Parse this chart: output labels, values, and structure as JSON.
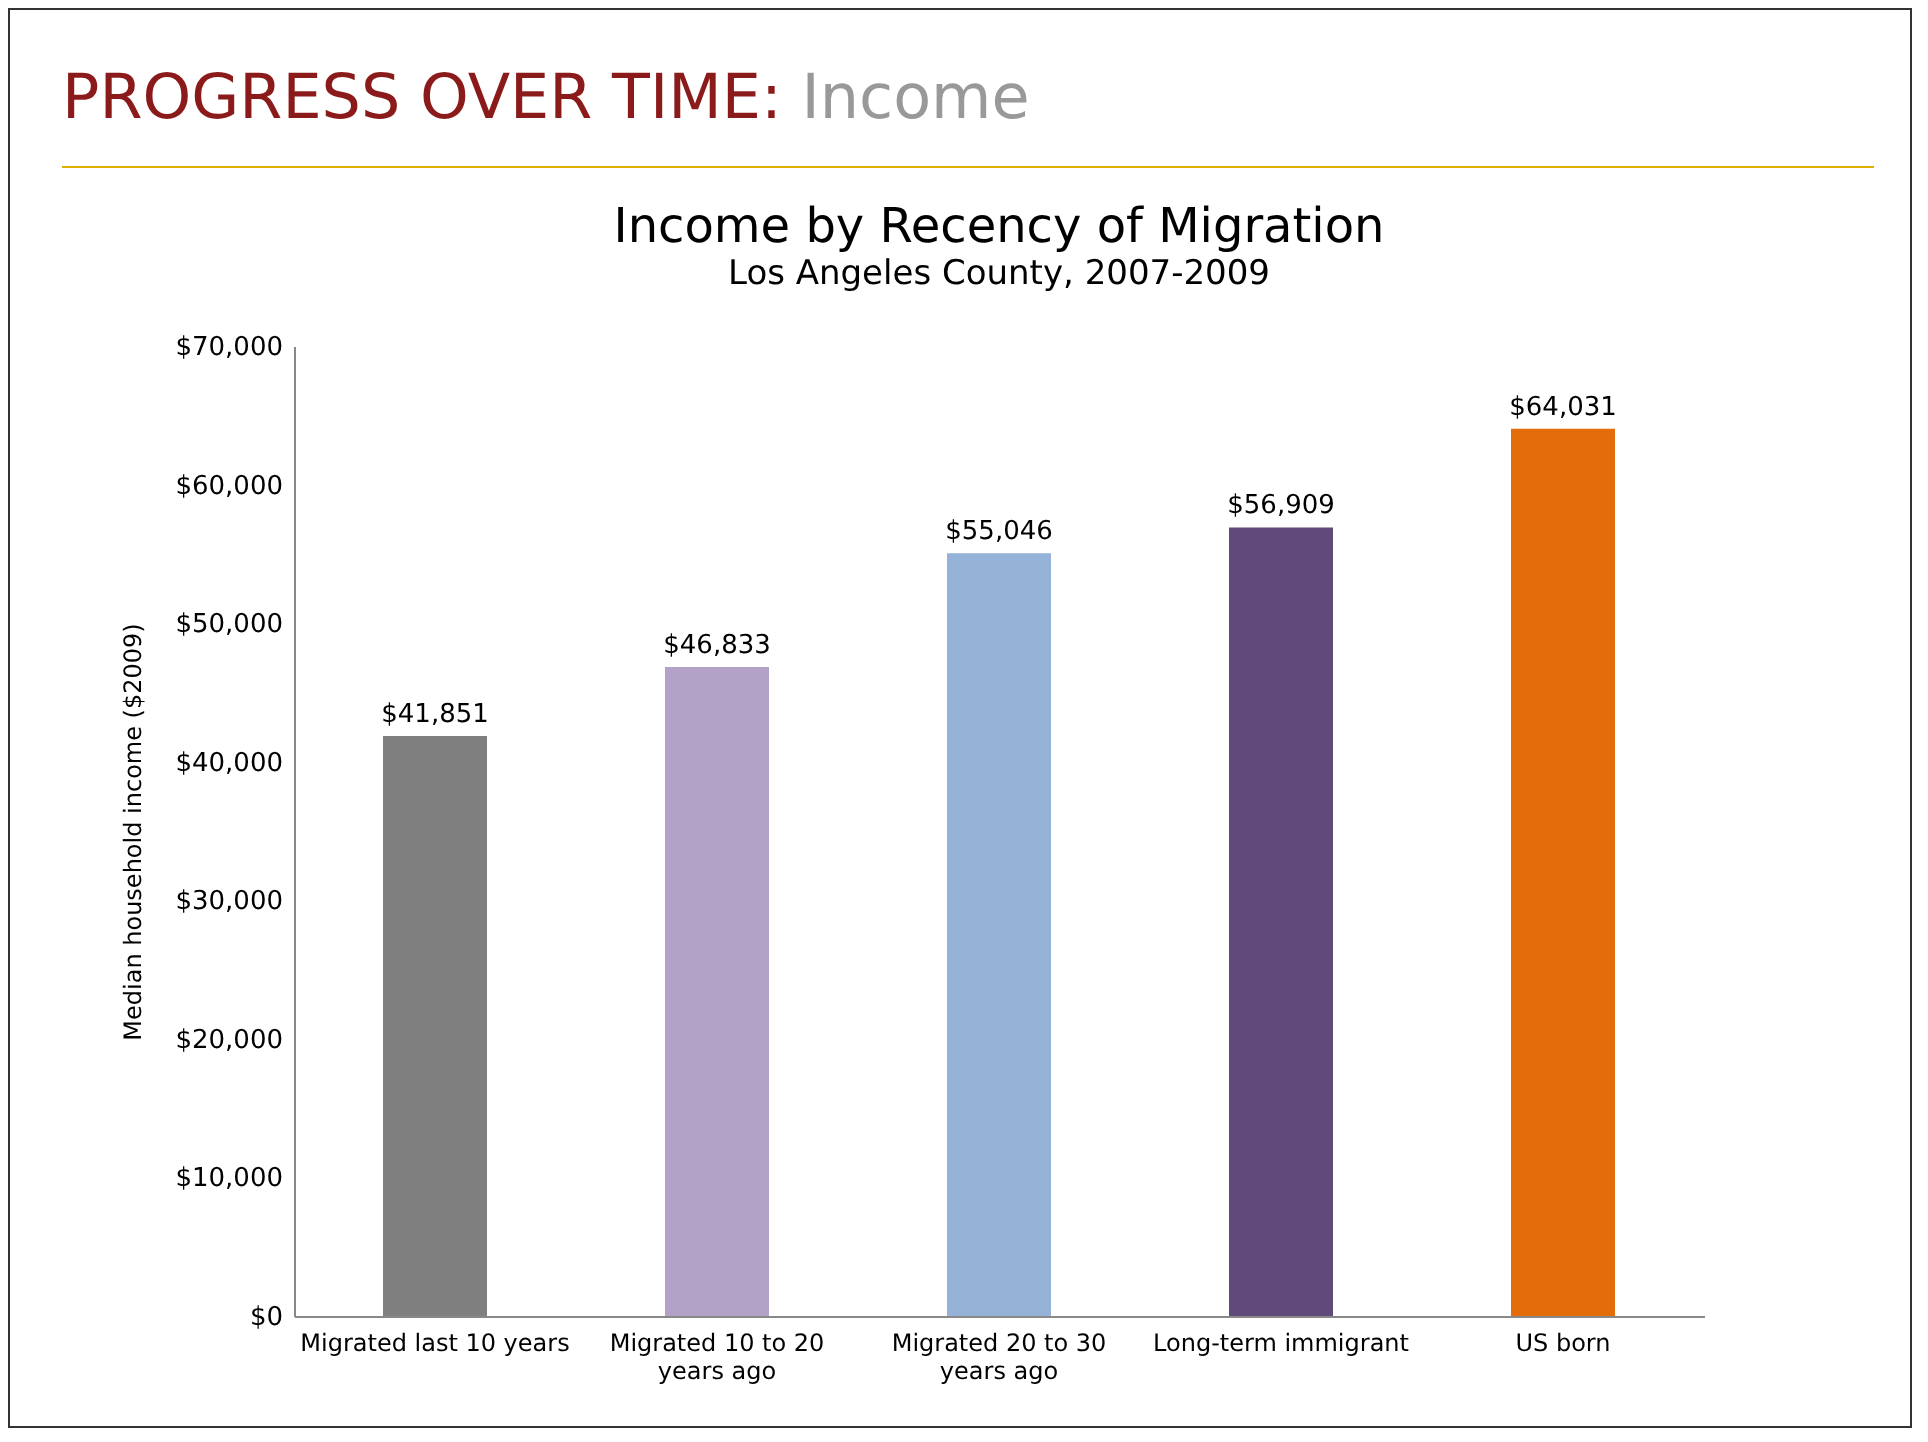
{
  "chart_data": {
    "type": "bar",
    "title": "Income by Recency of Migration",
    "subtitle": "Los Angeles County, 2007-2009",
    "ylabel": "Median household income ($2009)",
    "annotations": [
      "PROGRESS OVER TIME:",
      "Income"
    ],
    "categories": [
      "Migrated last 10 years",
      "Migrated 10 to 20 years ago",
      "Migrated 20 to 30 years ago",
      "Long-term immigrant",
      "US born"
    ],
    "values": [
      41851,
      46833,
      55046,
      56909,
      64031
    ],
    "value_labels": [
      "$41,851",
      "$46,833",
      "$55,046",
      "$56,909",
      "$64,031"
    ],
    "colors": [
      "#7f7f7f",
      "#b3a2c7",
      "#95b3d7",
      "#604a7b",
      "#e46c0a"
    ],
    "ylim": [
      0,
      70000
    ],
    "yticks": [
      {
        "value": 0,
        "label": "$0"
      },
      {
        "value": 10000,
        "label": "$10,000"
      },
      {
        "value": 20000,
        "label": "$20,000"
      },
      {
        "value": 30000,
        "label": "$30,000"
      },
      {
        "value": 40000,
        "label": "$40,000"
      },
      {
        "value": 50000,
        "label": "$50,000"
      },
      {
        "value": 60000,
        "label": "$60,000"
      },
      {
        "value": 70000,
        "label": "$70,000"
      }
    ],
    "grid": false
  }
}
